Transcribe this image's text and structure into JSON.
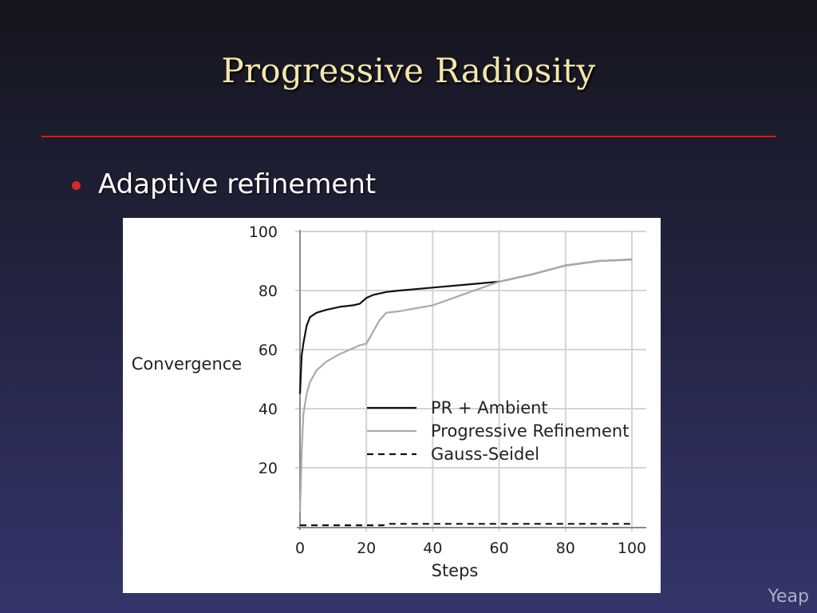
{
  "slide": {
    "title": "Progressive Radiosity",
    "bullet": "Adaptive refinement",
    "footer": "Yeap"
  },
  "colors": {
    "title": "#f5e6a8",
    "rule": "#c02424",
    "bullet": "#d42a2a"
  },
  "chart_data": {
    "type": "line",
    "xlabel": "Steps",
    "ylabel": "Convergence",
    "xlim": [
      0,
      100
    ],
    "ylim": [
      0,
      100
    ],
    "xticks": [
      0,
      20,
      40,
      60,
      80,
      100
    ],
    "yticks": [
      20,
      40,
      60,
      80,
      100
    ],
    "grid": true,
    "legend_position": "center-right",
    "series": [
      {
        "name": "PR + Ambient",
        "style": "solid",
        "color": "#111111",
        "x": [
          0,
          0.5,
          1,
          2,
          3,
          5,
          8,
          12,
          16,
          18,
          20,
          22,
          26,
          30,
          40,
          50,
          60,
          70,
          80,
          90,
          100
        ],
        "y": [
          45,
          58,
          62,
          68,
          71,
          72.5,
          73.5,
          74.5,
          75,
          75.5,
          77.5,
          78.5,
          79.5,
          80,
          81,
          82,
          83,
          85.5,
          88.5,
          90,
          90.5
        ]
      },
      {
        "name": "Progressive Refinement",
        "style": "solid",
        "color": "#aaaaaa",
        "x": [
          0,
          0.5,
          1,
          2,
          3,
          5,
          8,
          12,
          16,
          18,
          20,
          22,
          24,
          26,
          30,
          40,
          50,
          60,
          70,
          80,
          90,
          100
        ],
        "y": [
          5,
          25,
          38,
          45,
          49,
          53,
          56,
          58.5,
          60.5,
          61.5,
          62,
          66,
          70,
          72.5,
          73,
          75,
          79,
          83,
          85.5,
          88.5,
          90,
          90.5
        ]
      },
      {
        "name": "Gauss-Seidel",
        "style": "dashed",
        "color": "#111111",
        "x": [
          0,
          25,
          27,
          100
        ],
        "y": [
          0.5,
          0.5,
          1,
          1
        ]
      }
    ]
  }
}
